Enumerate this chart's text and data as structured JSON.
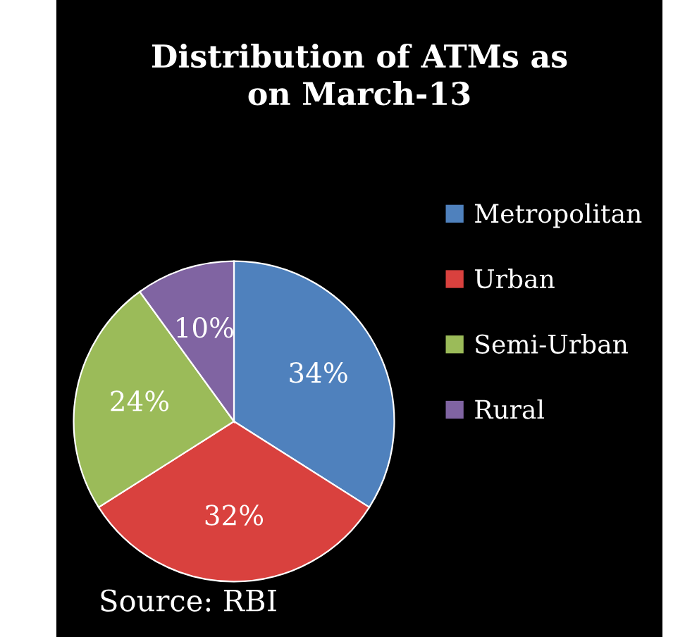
{
  "chart_data": {
    "type": "pie",
    "title": "Distribution of ATMs as\non March-13",
    "categories": [
      "Metropolitan",
      "Urban",
      "Semi-Urban",
      "Rural"
    ],
    "values": [
      34,
      32,
      24,
      10
    ],
    "value_labels": [
      "34%",
      "32%",
      "24%",
      "10%"
    ],
    "colors": [
      "#4f81bd",
      "#d9413e",
      "#9bbb59",
      "#8064a2"
    ],
    "legend": "right",
    "annotations": [
      "Source: RBI"
    ]
  }
}
